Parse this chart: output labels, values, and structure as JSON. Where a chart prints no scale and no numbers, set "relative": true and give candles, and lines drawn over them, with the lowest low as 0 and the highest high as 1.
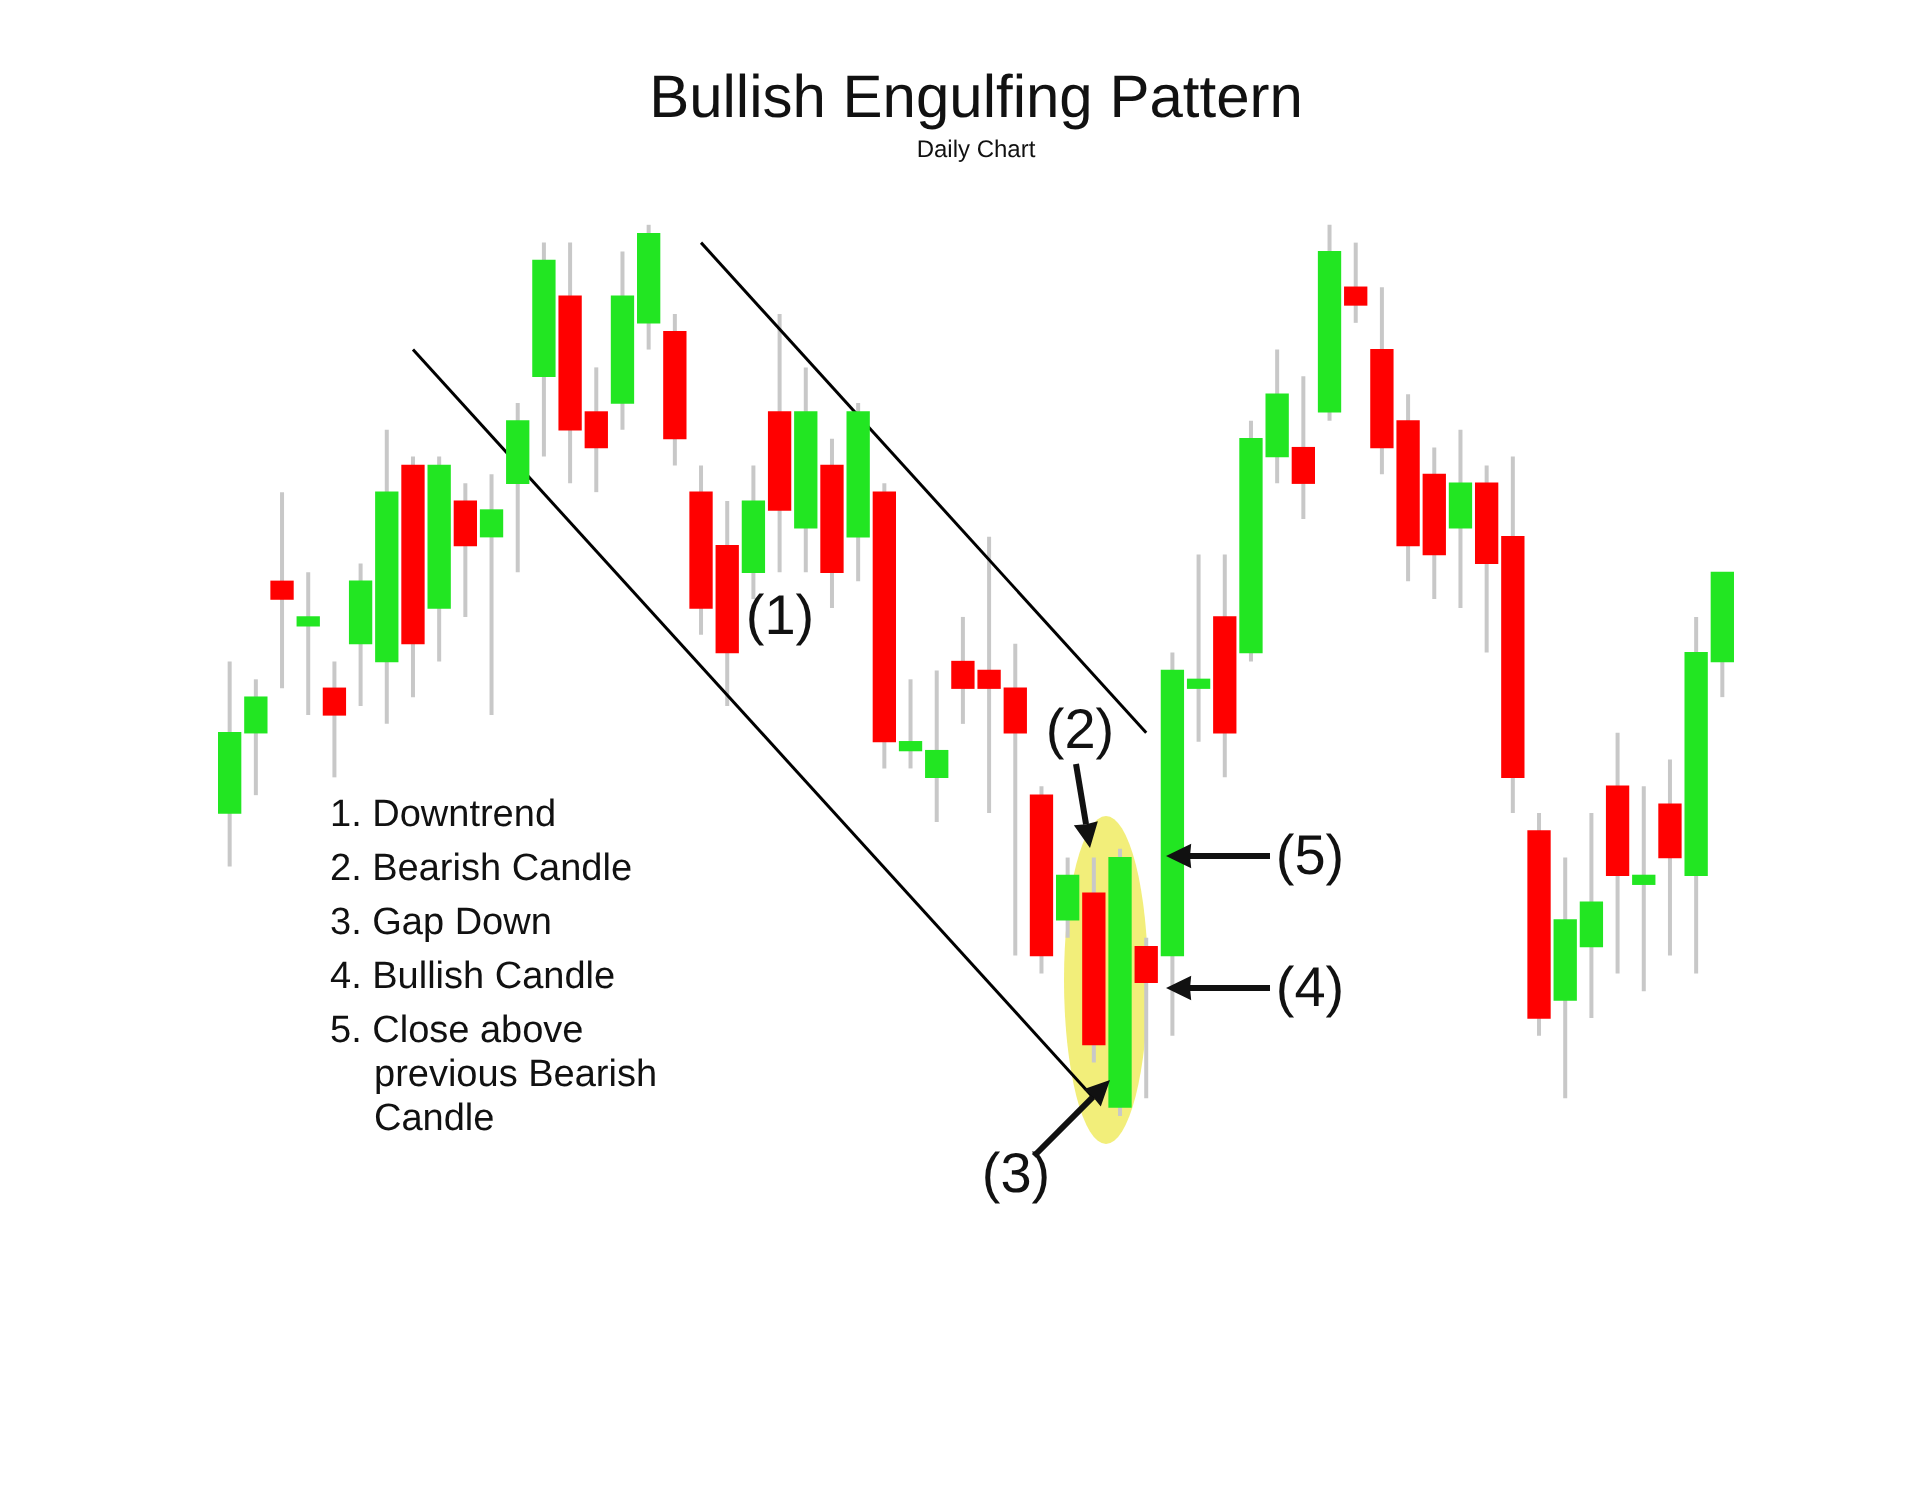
{
  "chart_data": {
    "type": "candlestick",
    "title": "Bullish Engulfing Pattern",
    "subtitle": "Daily Chart",
    "relative": true,
    "categories": [
      null,
      null,
      null,
      null,
      null,
      null,
      null,
      null,
      null,
      null,
      null,
      null,
      null,
      null,
      null,
      null,
      null,
      null,
      null,
      null,
      null,
      null,
      null,
      null,
      null,
      null,
      null,
      null,
      null,
      null,
      null,
      null,
      null,
      null,
      null,
      null,
      null,
      null,
      null,
      null,
      null,
      null,
      null,
      null,
      null,
      null,
      null,
      null,
      null,
      null,
      null,
      null,
      null,
      null,
      null,
      null,
      null,
      null
    ],
    "ohlc": [
      [
        0.34,
        0.51,
        0.28,
        0.43
      ],
      [
        0.43,
        0.49,
        0.36,
        0.47
      ],
      [
        0.6,
        0.7,
        0.48,
        0.58
      ],
      [
        0.55,
        0.61,
        0.45,
        0.56
      ],
      [
        0.48,
        0.51,
        0.38,
        0.45
      ],
      [
        0.53,
        0.62,
        0.46,
        0.6
      ],
      [
        0.51,
        0.77,
        0.44,
        0.7
      ],
      [
        0.73,
        0.74,
        0.47,
        0.53
      ],
      [
        0.57,
        0.74,
        0.51,
        0.73
      ],
      [
        0.69,
        0.71,
        0.56,
        0.64
      ],
      [
        0.65,
        0.72,
        0.45,
        0.68
      ],
      [
        0.71,
        0.8,
        0.61,
        0.78
      ],
      [
        0.83,
        0.98,
        0.74,
        0.96
      ],
      [
        0.92,
        0.98,
        0.71,
        0.77
      ],
      [
        0.79,
        0.84,
        0.7,
        0.75
      ],
      [
        0.8,
        0.97,
        0.77,
        0.92
      ],
      [
        0.89,
        1,
        0.86,
        0.99
      ],
      [
        0.88,
        0.9,
        0.73,
        0.76
      ],
      [
        0.7,
        0.73,
        0.54,
        0.57
      ],
      [
        0.64,
        0.69,
        0.46,
        0.52
      ],
      [
        0.61,
        0.73,
        0.58,
        0.69
      ],
      [
        0.79,
        0.9,
        0.61,
        0.68
      ],
      [
        0.66,
        0.84,
        0.61,
        0.79
      ],
      [
        0.73,
        0.76,
        0.57,
        0.61
      ],
      [
        0.65,
        0.8,
        0.6,
        0.79
      ],
      [
        0.7,
        0.71,
        0.39,
        0.42
      ],
      [
        0.41,
        0.49,
        0.39,
        0.42
      ],
      [
        0.38,
        0.5,
        0.33,
        0.41
      ],
      [
        0.51,
        0.56,
        0.44,
        0.48
      ],
      [
        0.5,
        0.65,
        0.34,
        0.48
      ],
      [
        0.48,
        0.53,
        0.18,
        0.43
      ],
      [
        0.36,
        0.37,
        0.16,
        0.18
      ],
      [
        0.22,
        0.29,
        0.2,
        0.27
      ],
      [
        0.25,
        0.29,
        0.06,
        0.08
      ],
      [
        0.01,
        0.3,
        0,
        0.29
      ],
      [
        0.19,
        0.2,
        0.02,
        0.15
      ],
      [
        0.18,
        0.52,
        0.09,
        0.5
      ],
      [
        0.48,
        0.63,
        0.42,
        0.49
      ],
      [
        0.56,
        0.63,
        0.38,
        0.43
      ],
      [
        0.52,
        0.78,
        0.51,
        0.76
      ],
      [
        0.74,
        0.86,
        0.71,
        0.81
      ],
      [
        0.75,
        0.83,
        0.67,
        0.71
      ],
      [
        0.79,
        1,
        0.78,
        0.97
      ],
      [
        0.93,
        0.98,
        0.89,
        0.91
      ],
      [
        0.86,
        0.93,
        0.72,
        0.75
      ],
      [
        0.78,
        0.81,
        0.6,
        0.64
      ],
      [
        0.72,
        0.75,
        0.58,
        0.63
      ],
      [
        0.66,
        0.77,
        0.57,
        0.71
      ],
      [
        0.71,
        0.73,
        0.52,
        0.62
      ],
      [
        0.65,
        0.74,
        0.34,
        0.38
      ],
      [
        0.32,
        0.34,
        0.09,
        0.11
      ],
      [
        0.13,
        0.29,
        0.02,
        0.22
      ],
      [
        0.19,
        0.34,
        0.11,
        0.24
      ],
      [
        0.37,
        0.43,
        0.16,
        0.27
      ],
      [
        0.26,
        0.37,
        0.14,
        0.27
      ],
      [
        0.35,
        0.4,
        0.18,
        0.29
      ],
      [
        0.27,
        0.56,
        0.16,
        0.52
      ],
      [
        0.51,
        0.61,
        0.47,
        0.61
      ]
    ],
    "colors": [
      "#22e622",
      "#22e622",
      "#ff0000",
      "#22e622",
      "#ff0000",
      "#22e622",
      "#22e622",
      "#ff0000",
      "#22e622",
      "#ff0000",
      "#22e622",
      "#22e622",
      "#22e622",
      "#ff0000",
      "#ff0000",
      "#22e622",
      "#22e622",
      "#ff0000",
      "#ff0000",
      "#ff0000",
      "#22e622",
      "#ff0000",
      "#22e622",
      "#ff0000",
      "#22e622",
      "#ff0000",
      "#22e622",
      "#22e622",
      "#ff0000",
      "#ff0000",
      "#ff0000",
      "#ff0000",
      "#22e622",
      "#ff0000",
      "#22e622",
      "#ff0000",
      "#22e622",
      "#22e622",
      "#ff0000",
      "#22e622",
      "#22e622",
      "#ff0000",
      "#22e622",
      "#ff0000",
      "#ff0000",
      "#ff0000",
      "#ff0000",
      "#22e622",
      "#ff0000",
      "#ff0000",
      "#ff0000",
      "#22e622",
      "#22e622",
      "#ff0000",
      "#22e622",
      "#ff0000",
      "#22e622",
      "#22e622"
    ],
    "series": [
      {
        "type": "line",
        "color": "#000000",
        "values": [
          null,
          null,
          null,
          null,
          null,
          null,
          null,
          null,
          null,
          null,
          null,
          null,
          null,
          null,
          null,
          null,
          null,
          null,
          0.98,
          null,
          null,
          null,
          null,
          null,
          null,
          null,
          null,
          null,
          null,
          null,
          null,
          null,
          null,
          null,
          null,
          0.43,
          null,
          null,
          null,
          null,
          null,
          null,
          null,
          null,
          null,
          null,
          null,
          null,
          null,
          null,
          null,
          null,
          null,
          null,
          null,
          null,
          null,
          null
        ]
      },
      {
        "type": "line",
        "color": "#000000",
        "values": [
          null,
          null,
          null,
          null,
          null,
          null,
          null,
          0.86,
          null,
          null,
          null,
          null,
          null,
          null,
          null,
          null,
          null,
          null,
          null,
          null,
          null,
          null,
          null,
          null,
          null,
          null,
          null,
          null,
          null,
          null,
          null,
          null,
          null,
          0.02,
          null,
          null,
          null,
          null,
          null,
          null,
          null,
          null,
          null,
          null,
          null,
          null,
          null,
          null,
          null,
          null,
          null,
          null,
          null,
          null,
          null,
          null,
          null,
          null
        ]
      }
    ],
    "legend": false,
    "annotations": [
      "(1)",
      "(2)",
      "(3)",
      "(4)",
      "(5)",
      "1. Downtrend",
      "2. Bearish Candle",
      "3. Gap Down",
      "4. Bullish Candle",
      "5. Close above previous Bearish Candle"
    ]
  }
}
